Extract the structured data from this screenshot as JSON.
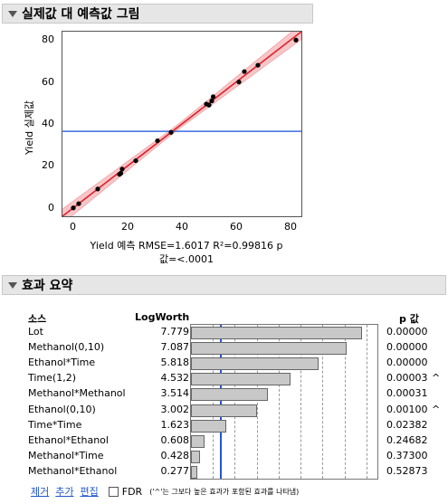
{
  "section1": {
    "title": "실제값 대 예측값 그림"
  },
  "plot": {
    "ylabel": "Yield 실제값",
    "xlabel_line1": "Yield 예측 RMSE=1.6017 R²=0.99816 p",
    "xlabel_line2": "값=<.0001",
    "xticks": [
      "0",
      "20",
      "40",
      "60",
      "80"
    ],
    "yticks": [
      "0",
      "20",
      "40",
      "60",
      "80"
    ]
  },
  "chart_data": {
    "type": "scatter",
    "xlabel": "Yield 예측",
    "ylabel": "Yield 실제값",
    "xlim": [
      -4,
      84
    ],
    "ylim": [
      -4,
      84
    ],
    "mean_line_y": 36.5,
    "fit_line": {
      "slope": 1,
      "intercept": 0
    },
    "points": [
      [
        0,
        0
      ],
      [
        2,
        2
      ],
      [
        9,
        9
      ],
      [
        17,
        16
      ],
      [
        17.5,
        16.5
      ],
      [
        18,
        18.5
      ],
      [
        23,
        22.5
      ],
      [
        31,
        32
      ],
      [
        36,
        36
      ],
      [
        49,
        49.5
      ],
      [
        50,
        49
      ],
      [
        51,
        51
      ],
      [
        51.5,
        53
      ],
      [
        61,
        60
      ],
      [
        63,
        65
      ],
      [
        68,
        68
      ],
      [
        82,
        80
      ]
    ]
  },
  "section2": {
    "title": "효과 요약"
  },
  "summary": {
    "headers": {
      "source": "소스",
      "logworth": "LogWorth",
      "pvalue": "p 값"
    },
    "rows": [
      {
        "source": "Lot",
        "logworth": "7.779",
        "pvalue": "0.00000",
        "mark": "",
        "lw": 7.779
      },
      {
        "source": "Methanol(0,10)",
        "logworth": "7.087",
        "pvalue": "0.00000",
        "mark": "",
        "lw": 7.087
      },
      {
        "source": "Ethanol*Time",
        "logworth": "5.818",
        "pvalue": "0.00000",
        "mark": "",
        "lw": 5.818
      },
      {
        "source": "Time(1,2)",
        "logworth": "4.532",
        "pvalue": "0.00003",
        "mark": "^",
        "lw": 4.532
      },
      {
        "source": "Methanol*Methanol",
        "logworth": "3.514",
        "pvalue": "0.00031",
        "mark": "",
        "lw": 3.514
      },
      {
        "source": "Ethanol(0,10)",
        "logworth": "3.002",
        "pvalue": "0.00100",
        "mark": "^",
        "lw": 3.002
      },
      {
        "source": "Time*Time",
        "logworth": "1.623",
        "pvalue": "0.02382",
        "mark": "",
        "lw": 1.623
      },
      {
        "source": "Ethanol*Ethanol",
        "logworth": "0.608",
        "pvalue": "0.24682",
        "mark": "",
        "lw": 0.608
      },
      {
        "source": "Methanol*Time",
        "logworth": "0.428",
        "pvalue": "0.37300",
        "mark": "",
        "lw": 0.428
      },
      {
        "source": "Methanol*Ethanol",
        "logworth": "0.277",
        "pvalue": "0.52873",
        "mark": "",
        "lw": 0.277
      }
    ],
    "bar_max": 8.5,
    "sig_line": 1.301
  },
  "footer": {
    "remove": "제거",
    "add": "추가",
    "edit": "편집",
    "fdr": "FDR",
    "note": "('^'는 그보다 높은 효과가 포함된 효과를 나타냄)"
  },
  "colors": {
    "fit": "#e0202a",
    "band": "#f4b8bc",
    "mean": "#3c6be0",
    "points": "#000000"
  }
}
